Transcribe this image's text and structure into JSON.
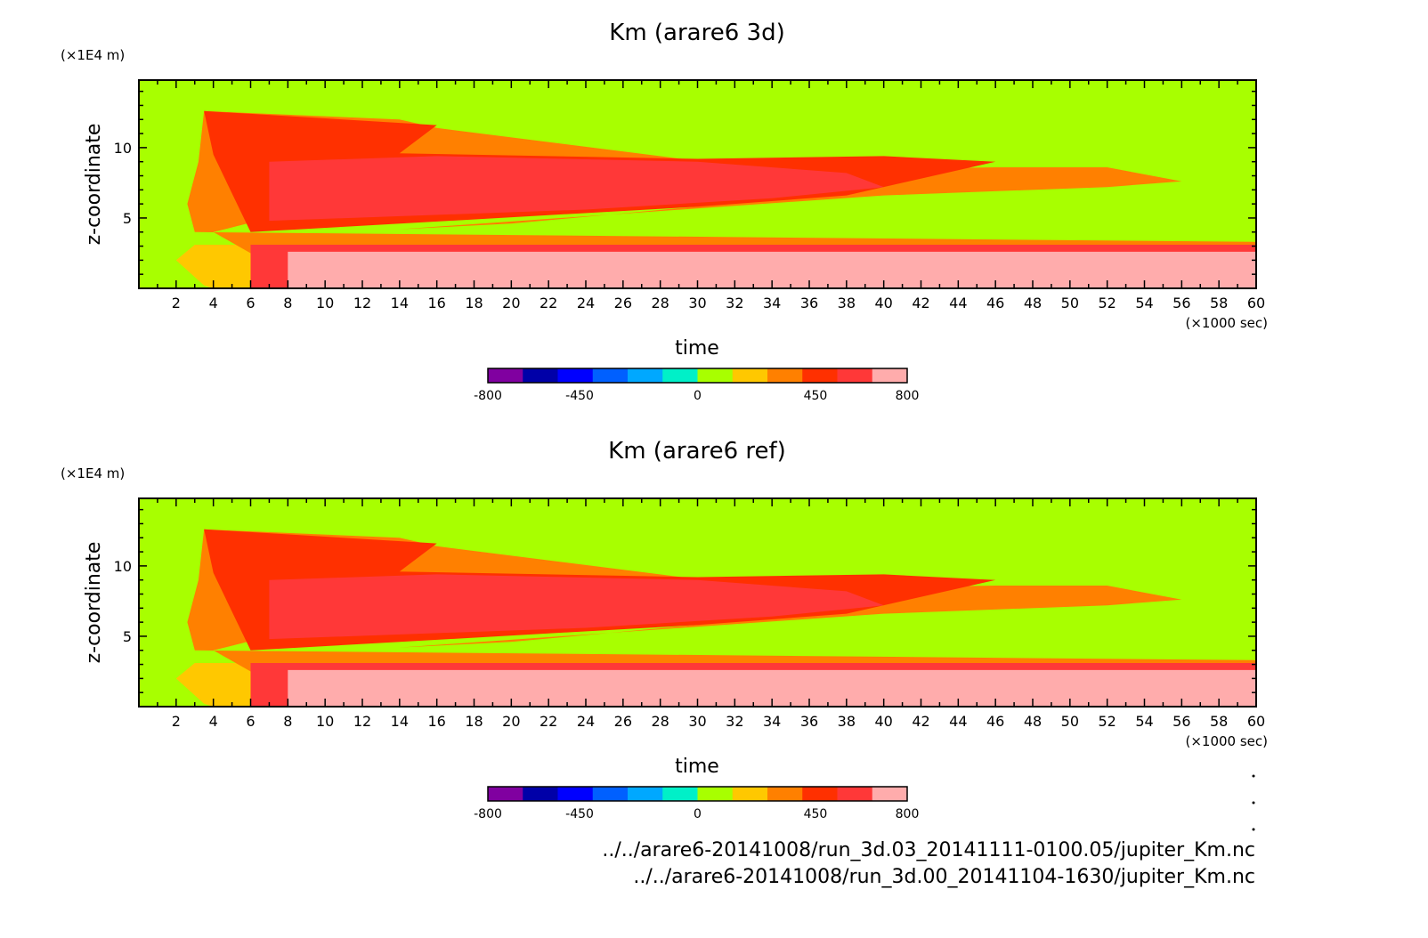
{
  "chart_data": [
    {
      "type": "heatmap",
      "title": "Km (arare6 3d)",
      "xlabel": "time",
      "x_unit": "(×1000 sec)",
      "ylabel": "z-coordinate",
      "y_unit": "(×1E4 m)",
      "xlim": [
        0,
        60
      ],
      "ylim": [
        0,
        14.8
      ],
      "x_ticks": [
        2,
        4,
        6,
        8,
        10,
        12,
        14,
        16,
        18,
        20,
        22,
        24,
        26,
        28,
        30,
        32,
        34,
        36,
        38,
        40,
        42,
        44,
        46,
        48,
        50,
        52,
        54,
        56,
        58,
        60
      ],
      "y_ticks": [
        5,
        10
      ],
      "background_level": "0 to 100",
      "regions": [
        {
          "level": "100-250",
          "points": [
            [
              3.5,
              0.2
            ],
            [
              2,
              2
            ],
            [
              3,
              3.1
            ],
            [
              60,
              3.1
            ],
            [
              60,
              0
            ],
            [
              4,
              0
            ]
          ]
        },
        {
          "level": "250-400",
          "points": [
            [
              3.5,
              12.6
            ],
            [
              3.2,
              9
            ],
            [
              2.6,
              6
            ],
            [
              3,
              4
            ],
            [
              60,
              3.3
            ],
            [
              60,
              0.8
            ],
            [
              40,
              1
            ],
            [
              8,
              1
            ],
            [
              4,
              4
            ],
            [
              16,
              8
            ],
            [
              46,
              8.6
            ],
            [
              48,
              8.6
            ],
            [
              52,
              8.6
            ],
            [
              56,
              7.6
            ],
            [
              52,
              7.2
            ],
            [
              40,
              6.6
            ],
            [
              14,
              4.2
            ],
            [
              20,
              4.6
            ],
            [
              38,
              6.8
            ],
            [
              40,
              7.4
            ],
            [
              16,
              11.4
            ],
            [
              14,
              12
            ]
          ]
        },
        {
          "level": "400-550",
          "points": [
            [
              3.5,
              12.6
            ],
            [
              4,
              9.5
            ],
            [
              6,
              4
            ],
            [
              30,
              5.8
            ],
            [
              38,
              6.6
            ],
            [
              44,
              8.4
            ],
            [
              46,
              9
            ],
            [
              40,
              9.4
            ],
            [
              30,
              9.2
            ],
            [
              14,
              9.6
            ],
            [
              16,
              11.6
            ],
            [
              6,
              12.4
            ]
          ]
        },
        {
          "level": "550-700",
          "points": [
            [
              7,
              9
            ],
            [
              7,
              4.8
            ],
            [
              24,
              5.6
            ],
            [
              34,
              6.4
            ],
            [
              40,
              7.2
            ],
            [
              38,
              8.2
            ],
            [
              30,
              9
            ],
            [
              16,
              9.4
            ]
          ]
        },
        {
          "level": "550-700",
          "points": [
            [
              6,
              3.1
            ],
            [
              60,
              3.1
            ],
            [
              60,
              0
            ],
            [
              6,
              0
            ]
          ]
        },
        {
          "level": "700-800",
          "points": [
            [
              8,
              2.6
            ],
            [
              60,
              2.6
            ],
            [
              60,
              0
            ],
            [
              8,
              0
            ]
          ]
        }
      ],
      "colorbar": {
        "levels": [
          "-800",
          "-700",
          "-550",
          "-400",
          "-250",
          "-100",
          "0",
          "100",
          "250",
          "400",
          "550",
          "700",
          "800"
        ],
        "tick_labels": [
          "-800",
          "-450",
          "0",
          "450",
          "800"
        ],
        "colors": [
          "#8000a0",
          "#0000a8",
          "#0000ff",
          "#0060ff",
          "#00a8ff",
          "#00f0c8",
          "#a8ff00",
          "#ffc800",
          "#ff8000",
          "#ff3000",
          "#ff3838",
          "#ffacac"
        ]
      }
    },
    {
      "type": "heatmap",
      "title": "Km (arare6 ref)",
      "xlabel": "time",
      "x_unit": "(×1000 sec)",
      "ylabel": "z-coordinate",
      "y_unit": "(×1E4 m)",
      "xlim": [
        0,
        60
      ],
      "ylim": [
        0,
        14.8
      ],
      "x_ticks": [
        2,
        4,
        6,
        8,
        10,
        12,
        14,
        16,
        18,
        20,
        22,
        24,
        26,
        28,
        30,
        32,
        34,
        36,
        38,
        40,
        42,
        44,
        46,
        48,
        50,
        52,
        54,
        56,
        58,
        60
      ],
      "y_ticks": [
        5,
        10
      ],
      "background_level": "0 to 100",
      "regions": [
        {
          "level": "100-250",
          "points": [
            [
              3.5,
              0.2
            ],
            [
              2,
              2
            ],
            [
              3,
              3.1
            ],
            [
              60,
              3.1
            ],
            [
              60,
              0
            ],
            [
              4,
              0
            ]
          ]
        },
        {
          "level": "250-400",
          "points": [
            [
              3.5,
              12.6
            ],
            [
              3.2,
              9
            ],
            [
              2.6,
              6
            ],
            [
              3,
              4
            ],
            [
              60,
              3.3
            ],
            [
              60,
              0.8
            ],
            [
              40,
              1
            ],
            [
              8,
              1
            ],
            [
              4,
              4
            ],
            [
              16,
              8
            ],
            [
              46,
              8.6
            ],
            [
              48,
              8.6
            ],
            [
              52,
              8.6
            ],
            [
              56,
              7.6
            ],
            [
              52,
              7.2
            ],
            [
              40,
              6.6
            ],
            [
              14,
              4.2
            ],
            [
              20,
              4.6
            ],
            [
              38,
              6.8
            ],
            [
              40,
              7.4
            ],
            [
              16,
              11.4
            ],
            [
              14,
              12
            ]
          ]
        },
        {
          "level": "400-550",
          "points": [
            [
              3.5,
              12.6
            ],
            [
              4,
              9.5
            ],
            [
              6,
              4
            ],
            [
              30,
              5.8
            ],
            [
              38,
              6.6
            ],
            [
              44,
              8.4
            ],
            [
              46,
              9
            ],
            [
              40,
              9.4
            ],
            [
              30,
              9.2
            ],
            [
              14,
              9.6
            ],
            [
              16,
              11.6
            ],
            [
              6,
              12.4
            ]
          ]
        },
        {
          "level": "550-700",
          "points": [
            [
              7,
              9
            ],
            [
              7,
              4.8
            ],
            [
              24,
              5.6
            ],
            [
              34,
              6.4
            ],
            [
              40,
              7.2
            ],
            [
              38,
              8.2
            ],
            [
              30,
              9
            ],
            [
              16,
              9.4
            ]
          ]
        },
        {
          "level": "550-700",
          "points": [
            [
              6,
              3.1
            ],
            [
              60,
              3.1
            ],
            [
              60,
              0
            ],
            [
              6,
              0
            ]
          ]
        },
        {
          "level": "700-800",
          "points": [
            [
              8,
              2.6
            ],
            [
              60,
              2.6
            ],
            [
              60,
              0
            ],
            [
              8,
              0
            ]
          ]
        }
      ],
      "colorbar": {
        "levels": [
          "-800",
          "-700",
          "-550",
          "-400",
          "-250",
          "-100",
          "0",
          "100",
          "250",
          "400",
          "550",
          "700",
          "800"
        ],
        "tick_labels": [
          "-800",
          "-450",
          "0",
          "450",
          "800"
        ],
        "colors": [
          "#8000a0",
          "#0000a8",
          "#0000ff",
          "#0060ff",
          "#00a8ff",
          "#00f0c8",
          "#a8ff00",
          "#ffc800",
          "#ff8000",
          "#ff3000",
          "#ff3838",
          "#ffacac"
        ]
      }
    }
  ],
  "level_colors": {
    "0 to 100": "#a8ff00",
    "100-250": "#ffc800",
    "250-400": "#ff8000",
    "400-550": "#ff3000",
    "550-700": "#ff3838",
    "700-800": "#ffacac"
  },
  "file_lines": [
    "../../arare6-20141008/run_3d.03_20141111-0100.05/jupiter_Km.nc",
    "../../arare6-20141008/run_3d.00_20141104-1630/jupiter_Km.nc"
  ]
}
